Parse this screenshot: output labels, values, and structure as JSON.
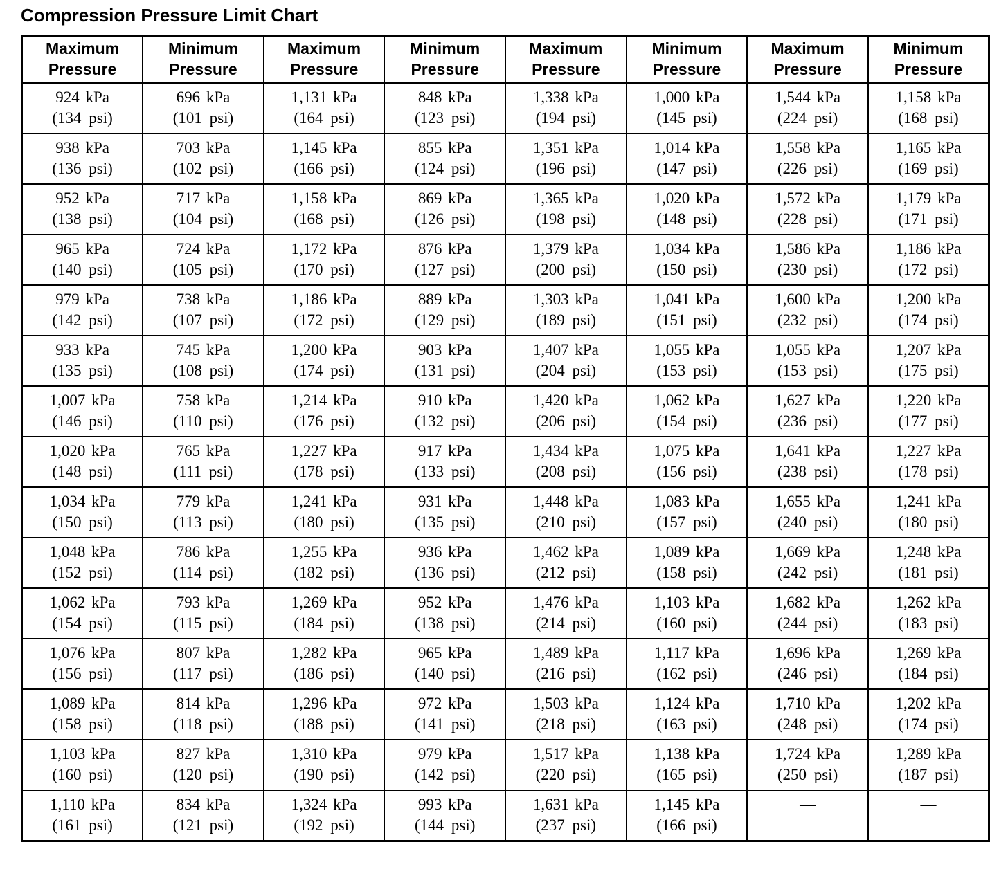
{
  "page": {
    "title": "Compression Pressure Limit Chart"
  },
  "table": {
    "column_headers": [
      "Maximum Pressure",
      "Minimum Pressure",
      "Maximum Pressure",
      "Minimum Pressure",
      "Maximum Pressure",
      "Minimum Pressure",
      "Maximum Pressure",
      "Minimum Pressure"
    ],
    "rows": [
      [
        {
          "kpa": "924 kPa",
          "psi": "(134 psi)"
        },
        {
          "kpa": "696 kPa",
          "psi": "(101 psi)"
        },
        {
          "kpa": "1,131 kPa",
          "psi": "(164 psi)"
        },
        {
          "kpa": "848 kPa",
          "psi": "(123 psi)"
        },
        {
          "kpa": "1,338 kPa",
          "psi": "(194 psi)"
        },
        {
          "kpa": "1,000 kPa",
          "psi": "(145 psi)"
        },
        {
          "kpa": "1,544 kPa",
          "psi": "(224 psi)"
        },
        {
          "kpa": "1,158 kPa",
          "psi": "(168 psi)"
        }
      ],
      [
        {
          "kpa": "938 kPa",
          "psi": "(136 psi)"
        },
        {
          "kpa": "703 kPa",
          "psi": "(102 psi)"
        },
        {
          "kpa": "1,145 kPa",
          "psi": "(166 psi)"
        },
        {
          "kpa": "855 kPa",
          "psi": "(124 psi)"
        },
        {
          "kpa": "1,351 kPa",
          "psi": "(196 psi)"
        },
        {
          "kpa": "1,014 kPa",
          "psi": "(147 psi)"
        },
        {
          "kpa": "1,558 kPa",
          "psi": "(226 psi)"
        },
        {
          "kpa": "1,165 kPa",
          "psi": "(169 psi)"
        }
      ],
      [
        {
          "kpa": "952 kPa",
          "psi": "(138 psi)"
        },
        {
          "kpa": "717 kPa",
          "psi": "(104 psi)"
        },
        {
          "kpa": "1,158 kPa",
          "psi": "(168 psi)"
        },
        {
          "kpa": "869 kPa",
          "psi": "(126 psi)"
        },
        {
          "kpa": "1,365 kPa",
          "psi": "(198 psi)"
        },
        {
          "kpa": "1,020 kPa",
          "psi": "(148 psi)"
        },
        {
          "kpa": "1,572 kPa",
          "psi": "(228 psi)"
        },
        {
          "kpa": "1,179 kPa",
          "psi": "(171 psi)"
        }
      ],
      [
        {
          "kpa": "965 kPa",
          "psi": "(140 psi)"
        },
        {
          "kpa": "724 kPa",
          "psi": "(105 psi)"
        },
        {
          "kpa": "1,172 kPa",
          "psi": "(170 psi)"
        },
        {
          "kpa": "876 kPa",
          "psi": "(127 psi)"
        },
        {
          "kpa": "1,379 kPa",
          "psi": "(200 psi)"
        },
        {
          "kpa": "1,034 kPa",
          "psi": "(150 psi)"
        },
        {
          "kpa": "1,586 kPa",
          "psi": "(230 psi)"
        },
        {
          "kpa": "1,186 kPa",
          "psi": "(172 psi)"
        }
      ],
      [
        {
          "kpa": "979 kPa",
          "psi": "(142 psi)"
        },
        {
          "kpa": "738 kPa",
          "psi": "(107 psi)"
        },
        {
          "kpa": "1,186 kPa",
          "psi": "(172 psi)"
        },
        {
          "kpa": "889 kPa",
          "psi": "(129 psi)"
        },
        {
          "kpa": "1,303 kPa",
          "psi": "(189 psi)"
        },
        {
          "kpa": "1,041 kPa",
          "psi": "(151 psi)"
        },
        {
          "kpa": "1,600 kPa",
          "psi": "(232 psi)"
        },
        {
          "kpa": "1,200 kPa",
          "psi": "(174 psi)"
        }
      ],
      [
        {
          "kpa": "933 kPa",
          "psi": "(135 psi)"
        },
        {
          "kpa": "745 kPa",
          "psi": "(108 psi)"
        },
        {
          "kpa": "1,200 kPa",
          "psi": "(174 psi)"
        },
        {
          "kpa": "903 kPa",
          "psi": "(131 psi)"
        },
        {
          "kpa": "1,407 kPa",
          "psi": "(204 psi)"
        },
        {
          "kpa": "1,055 kPa",
          "psi": "(153 psi)"
        },
        {
          "kpa": "1,055 kPa",
          "psi": "(153 psi)"
        },
        {
          "kpa": "1,207 kPa",
          "psi": "(175 psi)"
        }
      ],
      [
        {
          "kpa": "1,007 kPa",
          "psi": "(146 psi)"
        },
        {
          "kpa": "758 kPa",
          "psi": "(110 psi)"
        },
        {
          "kpa": "1,214 kPa",
          "psi": "(176 psi)"
        },
        {
          "kpa": "910 kPa",
          "psi": "(132 psi)"
        },
        {
          "kpa": "1,420 kPa",
          "psi": "(206 psi)"
        },
        {
          "kpa": "1,062 kPa",
          "psi": "(154 psi)"
        },
        {
          "kpa": "1,627 kPa",
          "psi": "(236 psi)"
        },
        {
          "kpa": "1,220 kPa",
          "psi": "(177 psi)"
        }
      ],
      [
        {
          "kpa": "1,020 kPa",
          "psi": "(148 psi)"
        },
        {
          "kpa": "765 kPa",
          "psi": "(111 psi)"
        },
        {
          "kpa": "1,227 kPa",
          "psi": "(178 psi)"
        },
        {
          "kpa": "917 kPa",
          "psi": "(133 psi)"
        },
        {
          "kpa": "1,434 kPa",
          "psi": "(208 psi)"
        },
        {
          "kpa": "1,075 kPa",
          "psi": "(156 psi)"
        },
        {
          "kpa": "1,641 kPa",
          "psi": "(238 psi)"
        },
        {
          "kpa": "1,227 kPa",
          "psi": "(178 psi)"
        }
      ],
      [
        {
          "kpa": "1,034 kPa",
          "psi": "(150 psi)"
        },
        {
          "kpa": "779 kPa",
          "psi": "(113 psi)"
        },
        {
          "kpa": "1,241 kPa",
          "psi": "(180 psi)"
        },
        {
          "kpa": "931 kPa",
          "psi": "(135 psi)"
        },
        {
          "kpa": "1,448 kPa",
          "psi": "(210 psi)"
        },
        {
          "kpa": "1,083 kPa",
          "psi": "(157 psi)"
        },
        {
          "kpa": "1,655 kPa",
          "psi": "(240 psi)"
        },
        {
          "kpa": "1,241 kPa",
          "psi": "(180 psi)"
        }
      ],
      [
        {
          "kpa": "1,048 kPa",
          "psi": "(152 psi)"
        },
        {
          "kpa": "786 kPa",
          "psi": "(114 psi)"
        },
        {
          "kpa": "1,255 kPa",
          "psi": "(182 psi)"
        },
        {
          "kpa": "936 kPa",
          "psi": "(136 psi)"
        },
        {
          "kpa": "1,462 kPa",
          "psi": "(212 psi)"
        },
        {
          "kpa": "1,089 kPa",
          "psi": "(158 psi)"
        },
        {
          "kpa": "1,669 kPa",
          "psi": "(242 psi)"
        },
        {
          "kpa": "1,248 kPa",
          "psi": "(181 psi)"
        }
      ],
      [
        {
          "kpa": "1,062 kPa",
          "psi": "(154 psi)"
        },
        {
          "kpa": "793 kPa",
          "psi": "(115 psi)"
        },
        {
          "kpa": "1,269 kPa",
          "psi": "(184 psi)"
        },
        {
          "kpa": "952 kPa",
          "psi": "(138 psi)"
        },
        {
          "kpa": "1,476 kPa",
          "psi": "(214 psi)"
        },
        {
          "kpa": "1,103 kPa",
          "psi": "(160 psi)"
        },
        {
          "kpa": "1,682 kPa",
          "psi": "(244 psi)"
        },
        {
          "kpa": "1,262 kPa",
          "psi": "(183 psi)"
        }
      ],
      [
        {
          "kpa": "1,076 kPa",
          "psi": "(156 psi)"
        },
        {
          "kpa": "807 kPa",
          "psi": "(117 psi)"
        },
        {
          "kpa": "1,282 kPa",
          "psi": "(186 psi)"
        },
        {
          "kpa": "965 kPa",
          "psi": "(140 psi)"
        },
        {
          "kpa": "1,489 kPa",
          "psi": "(216 psi)"
        },
        {
          "kpa": "1,117 kPa",
          "psi": "(162 psi)"
        },
        {
          "kpa": "1,696 kPa",
          "psi": "(246 psi)"
        },
        {
          "kpa": "1,269 kPa",
          "psi": "(184 psi)"
        }
      ],
      [
        {
          "kpa": "1,089 kPa",
          "psi": "(158 psi)"
        },
        {
          "kpa": "814 kPa",
          "psi": "(118 psi)"
        },
        {
          "kpa": "1,296 kPa",
          "psi": "(188 psi)"
        },
        {
          "kpa": "972 kPa",
          "psi": "(141 psi)"
        },
        {
          "kpa": "1,503 kPa",
          "psi": "(218 psi)"
        },
        {
          "kpa": "1,124 kPa",
          "psi": "(163 psi)"
        },
        {
          "kpa": "1,710 kPa",
          "psi": "(248 psi)"
        },
        {
          "kpa": "1,202 kPa",
          "psi": "(174 psi)"
        }
      ],
      [
        {
          "kpa": "1,103 kPa",
          "psi": "(160 psi)"
        },
        {
          "kpa": "827 kPa",
          "psi": "(120 psi)"
        },
        {
          "kpa": "1,310 kPa",
          "psi": "(190 psi)"
        },
        {
          "kpa": "979 kPa",
          "psi": "(142 psi)"
        },
        {
          "kpa": "1,517 kPa",
          "psi": "(220 psi)"
        },
        {
          "kpa": "1,138 kPa",
          "psi": "(165 psi)"
        },
        {
          "kpa": "1,724 kPa",
          "psi": "(250 psi)"
        },
        {
          "kpa": "1,289 kPa",
          "psi": "(187 psi)"
        }
      ],
      [
        {
          "kpa": "1,110 kPa",
          "psi": "(161 psi)"
        },
        {
          "kpa": "834 kPa",
          "psi": "(121 psi)"
        },
        {
          "kpa": "1,324 kPa",
          "psi": "(192 psi)"
        },
        {
          "kpa": "993 kPa",
          "psi": "(144 psi)"
        },
        {
          "kpa": "1,631 kPa",
          "psi": "(237 psi)"
        },
        {
          "kpa": "1,145 kPa",
          "psi": "(166 psi)"
        },
        {
          "kpa": "—",
          "psi": ""
        },
        {
          "kpa": "—",
          "psi": ""
        }
      ]
    ]
  }
}
